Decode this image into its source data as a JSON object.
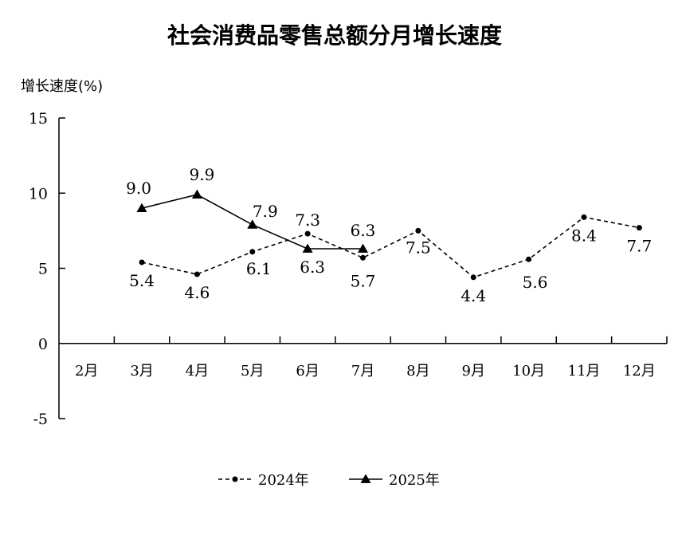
{
  "chart_data": {
    "type": "line",
    "title": "社会消费品零售总额分月增长速度",
    "ylabel": "增长速度(%)",
    "xlabel": "",
    "ylim": [
      -5,
      15
    ],
    "yticks": [
      "15",
      "10",
      "5",
      "0",
      "-5"
    ],
    "categories": [
      "2月",
      "3月",
      "4月",
      "5月",
      "6月",
      "7月",
      "8月",
      "9月",
      "10月",
      "11月",
      "12月"
    ],
    "series": [
      {
        "name": "2024年",
        "style": "dashed-circle",
        "color": "#000000",
        "values": [
          null,
          5.4,
          4.6,
          6.1,
          7.3,
          5.7,
          7.5,
          4.4,
          5.6,
          8.4,
          7.7
        ],
        "labels": [
          null,
          "5.4",
          "4.6",
          "6.1",
          "7.3",
          "5.7",
          "7.5",
          "4.4",
          "5.6",
          "8.4",
          "7.7"
        ]
      },
      {
        "name": "2025年",
        "style": "solid-triangle",
        "color": "#000000",
        "values": [
          null,
          9.0,
          9.9,
          7.9,
          6.3,
          6.3,
          null,
          null,
          null,
          null,
          null
        ],
        "labels": [
          null,
          "9.0",
          "9.9",
          "7.9",
          "6.3",
          "6.3",
          null,
          null,
          null,
          null,
          null
        ]
      }
    ],
    "grid": false,
    "legend_position": "bottom-center"
  }
}
